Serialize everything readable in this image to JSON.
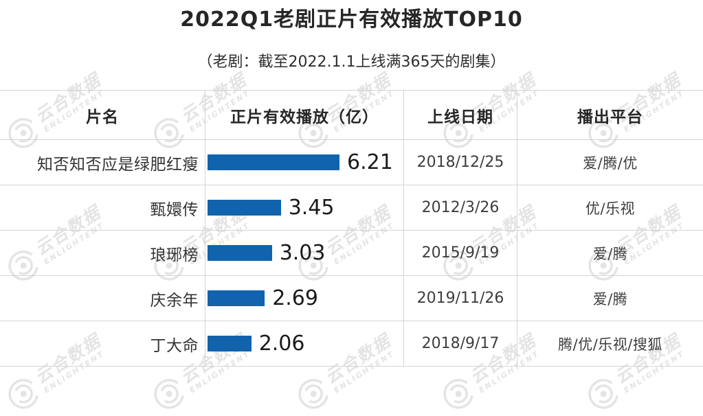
{
  "title": "2022Q1老剧正片有效播放TOP10",
  "subtitle": "（老剧：截至2022.1.1上线满365天的剧集）",
  "watermark": {
    "cn": "云合数据",
    "en": "ENLIGHTENT"
  },
  "table": {
    "headers": [
      "片名",
      "正片有效播放（亿）",
      "上线日期",
      "播出平台"
    ],
    "rows": [
      {
        "title": "知否知否应是绿肥红瘦",
        "value": "6.21",
        "date": "2018/12/25",
        "platforms": "爱/腾/优"
      },
      {
        "title": "甄嬛传",
        "value": "3.45",
        "date": "2012/3/26",
        "platforms": "优/乐视"
      },
      {
        "title": "琅琊榜",
        "value": "3.03",
        "date": "2015/9/19",
        "platforms": "爱/腾"
      },
      {
        "title": "庆余年",
        "value": "2.69",
        "date": "2019/11/26",
        "platforms": "爱/腾"
      },
      {
        "title": "丁大命",
        "value": "2.06",
        "date": "2018/9/17",
        "platforms": "腾/优/乐视/搜狐"
      }
    ]
  },
  "chart_data": {
    "type": "bar",
    "orientation": "horizontal",
    "title": "2022Q1老剧正片有效播放TOP10",
    "subtitle": "（老剧：截至2022.1.1上线满365天的剧集）",
    "columns": [
      "片名",
      "正片有效播放（亿）",
      "上线日期",
      "播出平台"
    ],
    "categories": [
      "知否知否应是绿肥红瘦",
      "甄嬛传",
      "琅琊榜",
      "庆余年",
      "丁大命"
    ],
    "values": [
      6.21,
      3.45,
      3.03,
      2.69,
      2.06
    ],
    "value_unit": "亿",
    "dates": [
      "2018/12/25",
      "2012/3/26",
      "2015/9/19",
      "2019/11/26",
      "2018/9/17"
    ],
    "platforms": [
      "爱/腾/优",
      "优/乐视",
      "爱/腾",
      "爱/腾",
      "腾/优/乐视/搜狐"
    ],
    "bar_color": "#1063ac",
    "xlim": [
      0,
      6.21
    ],
    "grid": false,
    "legend": false
  }
}
